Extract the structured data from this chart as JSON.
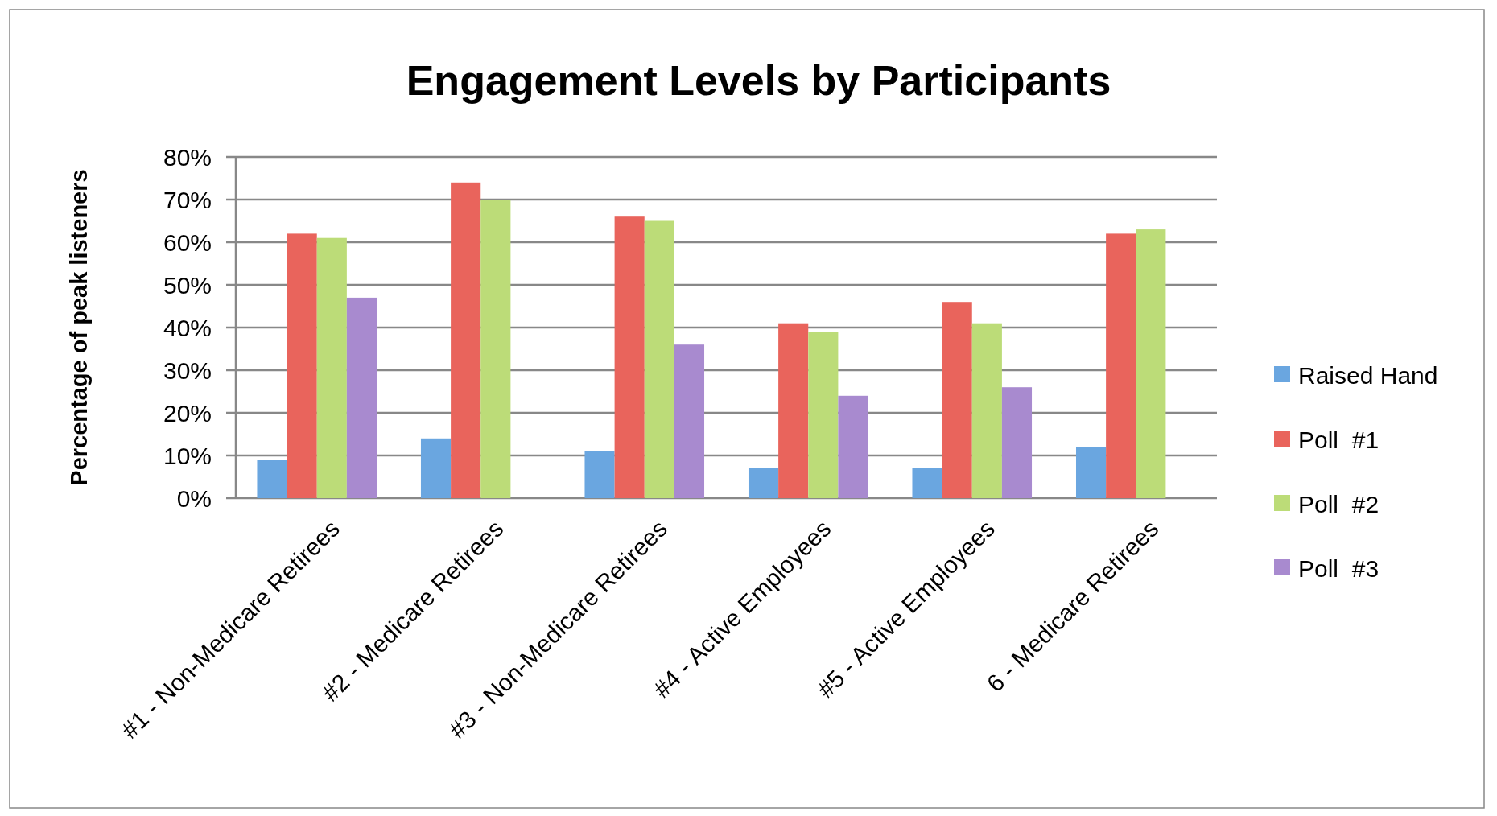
{
  "chart_data": {
    "type": "bar",
    "title": "Engagement Levels by Participants",
    "ylabel": "Percentage of peak listeners",
    "categories": [
      "#1 - Non-Medicare Retirees",
      "#2 - Medicare Retirees",
      "#3 - Non-Medicare Retirees",
      "#4 - Active Employees",
      "#5 - Active Employees",
      "6 - Medicare Retirees"
    ],
    "series": [
      {
        "name": "Raised Hand",
        "color": "#6aa6e0",
        "values": [
          9,
          14,
          11,
          7,
          7,
          12
        ]
      },
      {
        "name": "Poll  #1",
        "color": "#e9645c",
        "values": [
          62,
          74,
          66,
          41,
          46,
          62
        ]
      },
      {
        "name": "Poll  #2",
        "color": "#bcdc78",
        "values": [
          61,
          70,
          65,
          39,
          41,
          63
        ]
      },
      {
        "name": "Poll  #3",
        "color": "#a88acf",
        "values": [
          47,
          null,
          36,
          24,
          26,
          null
        ]
      }
    ],
    "ylim": [
      0,
      80
    ],
    "yticks": [
      {
        "value": 0,
        "label": "0%"
      },
      {
        "value": 10,
        "label": "10%"
      },
      {
        "value": 20,
        "label": "20%"
      },
      {
        "value": 30,
        "label": "30%"
      },
      {
        "value": 40,
        "label": "40%"
      },
      {
        "value": 50,
        "label": "50%"
      },
      {
        "value": 60,
        "label": "60%"
      },
      {
        "value": 70,
        "label": "70%"
      },
      {
        "value": 80,
        "label": "80%"
      }
    ],
    "grid": "y",
    "legend": "right"
  }
}
